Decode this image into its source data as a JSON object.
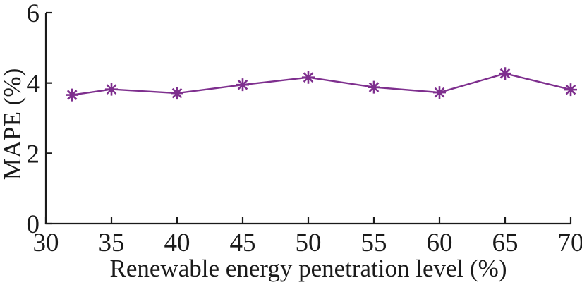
{
  "chart_data": {
    "type": "line",
    "title": "",
    "xlabel": "Renewable energy penetration level (%)",
    "ylabel": "MAPE (%)",
    "xlim": [
      30,
      70
    ],
    "ylim": [
      0,
      6
    ],
    "xticks": [
      30,
      35,
      40,
      45,
      50,
      55,
      60,
      65,
      70
    ],
    "yticks": [
      0,
      2,
      4,
      6
    ],
    "grid": false,
    "legend_position": "none",
    "axis_color": "#1a1a1a",
    "series": [
      {
        "marker": "asterisk",
        "color": "#7E2F8E",
        "x": [
          32,
          35,
          40,
          45,
          50,
          55,
          60,
          65,
          70
        ],
        "y": [
          3.66,
          3.82,
          3.71,
          3.95,
          4.16,
          3.88,
          3.73,
          4.27,
          3.81
        ]
      }
    ]
  }
}
